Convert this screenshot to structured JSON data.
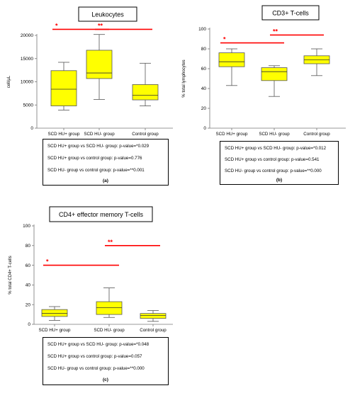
{
  "style": {
    "box_fill": "#ffff00",
    "box_stroke": "#555555",
    "sig_color": "#ff0000",
    "axis_color": "#777777"
  },
  "chart_data": [
    {
      "type": "box",
      "title": "Leukocytes",
      "ylabel": "cell/µL",
      "xlabel": "",
      "ylim": [
        0,
        20000
      ],
      "yticks": [
        "0",
        "5000",
        "10000",
        "15000",
        "20000"
      ],
      "categories": [
        "SCD HU+ group",
        "SCD HU- group",
        "Control group"
      ],
      "boxes": [
        {
          "whisker_low": 3900,
          "q1": 4800,
          "median": 8400,
          "q3": 12400,
          "whisker_high": 14200
        },
        {
          "whisker_low": 6200,
          "q1": 10700,
          "median": 11900,
          "q3": 16800,
          "whisker_high": 20200
        },
        {
          "whisker_low": 4800,
          "q1": 6100,
          "median": 7100,
          "q3": 9400,
          "whisker_high": 14000
        }
      ],
      "significance": [
        {
          "from": 0,
          "to": 1,
          "label": "*",
          "level": 21300
        },
        {
          "from": 1,
          "to": 2,
          "label": "**",
          "level": 21300
        }
      ],
      "stats": [
        "SCD HU+ group vs SCD HU- group: p-value=*0.029",
        "SCD HU+ group vs control group: p-value=0.776",
        "SCD HU- group vs control group: p-value=**0.001"
      ],
      "panel": "(a)"
    },
    {
      "type": "box",
      "title": "CD3+ T-cells",
      "ylabel": "% total lymphocytes",
      "xlabel": "",
      "ylim": [
        0,
        100
      ],
      "yticks": [
        "0",
        "20",
        "40",
        "60",
        "80",
        "100"
      ],
      "categories": [
        "SCD HU+ group",
        "SCD HU- group",
        "Control group"
      ],
      "boxes": [
        {
          "whisker_low": 43,
          "q1": 62,
          "median": 67,
          "q3": 76,
          "whisker_high": 80
        },
        {
          "whisker_low": 32,
          "q1": 48,
          "median": 57,
          "q3": 61,
          "whisker_high": 63
        },
        {
          "whisker_low": 53,
          "q1": 65,
          "median": 69,
          "q3": 73,
          "whisker_high": 80
        }
      ],
      "significance": [
        {
          "from": 0,
          "to": 1,
          "label": "*",
          "level": 86
        },
        {
          "from": 1,
          "to": 2,
          "label": "**",
          "level": 94
        }
      ],
      "stats": [
        "SCD HU+ group vs SCD HU- group: p-value=*0.012",
        "SCD HU+ group vs control group: p-value=0.541",
        "SCD HU- group vs control group: p-value=**0.000"
      ],
      "panel": "(b)"
    },
    {
      "type": "box",
      "title": "CD4+ effector memory T-cells",
      "ylabel": "% total CD4+ T-cells",
      "xlabel": "",
      "ylim": [
        0,
        100
      ],
      "yticks": [
        "0",
        "20",
        "40",
        "60",
        "80",
        "100"
      ],
      "categories": [
        "SCD HU+ group",
        "SCD HU- group",
        "Control group"
      ],
      "boxes": [
        {
          "whisker_low": 4,
          "q1": 8,
          "median": 11,
          "q3": 15,
          "whisker_high": 18
        },
        {
          "whisker_low": 7,
          "q1": 10,
          "median": 17,
          "q3": 23,
          "whisker_high": 37
        },
        {
          "whisker_low": 3,
          "q1": 6,
          "median": 9,
          "q3": 11,
          "whisker_high": 14
        }
      ],
      "significance": [
        {
          "from": 0,
          "to": 1,
          "label": "*",
          "level": 60
        },
        {
          "from": 1,
          "to": 2,
          "label": "**",
          "level": 80
        }
      ],
      "stats": [
        "SCD HU+ group vs SCD HU- group: p-value=*0.048",
        "SCD HU+ group vs control group: p-value=0.057",
        "SCD HU- group vs control group: p-value=**0.000"
      ],
      "panel": "(c)"
    }
  ]
}
